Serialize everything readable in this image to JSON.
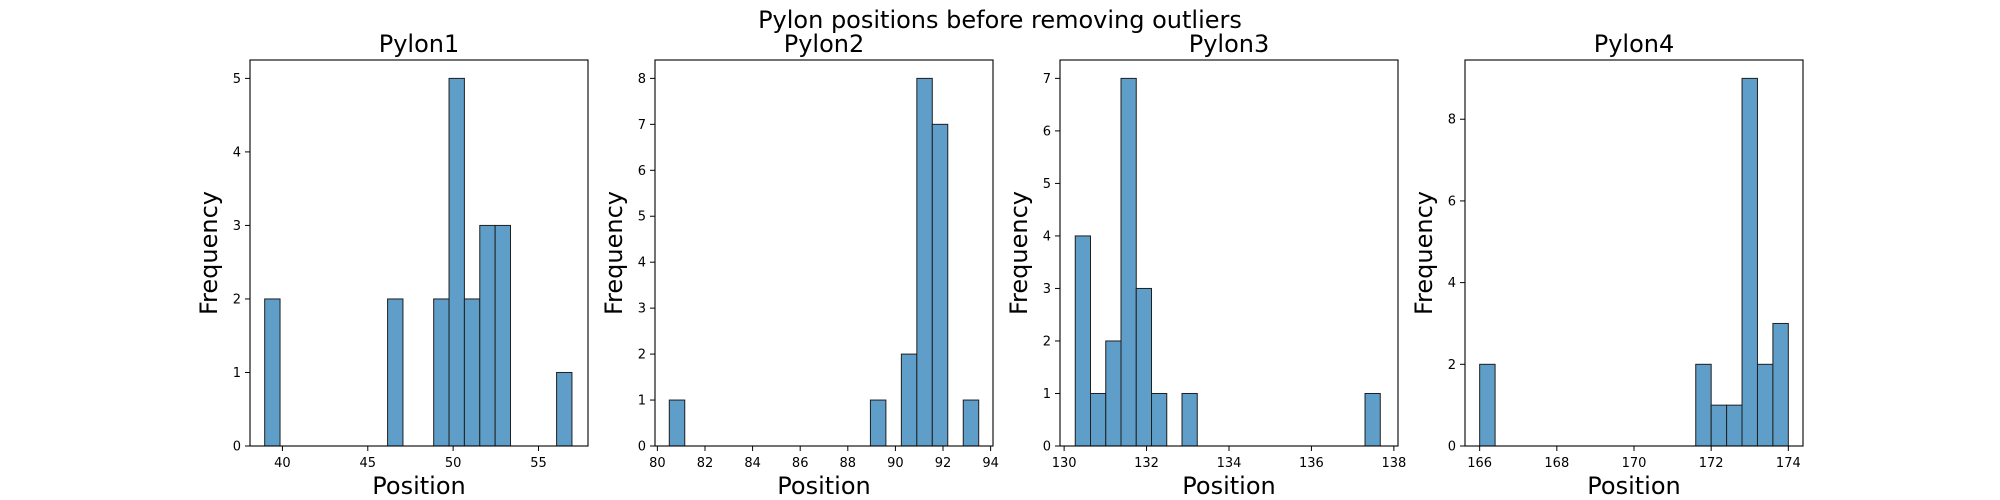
{
  "chart_data": {
    "type": "bar",
    "title": "Pylon positions before removing outliers",
    "bar_color": "#5f9ec9",
    "edge_color": "#1f1f1f",
    "panels": [
      {
        "title": "Pylon1",
        "xlabel": "Position",
        "ylabel": "Frequency",
        "xlim": [
          38.1,
          57.9
        ],
        "ylim": [
          0,
          5.25
        ],
        "xticks": [
          40,
          45,
          50,
          55
        ],
        "yticks": [
          0,
          1,
          2,
          3,
          4,
          5
        ],
        "bin_edges": [
          38.96,
          39.86,
          40.76,
          41.66,
          42.56,
          43.46,
          44.36,
          45.26,
          46.16,
          47.06,
          47.96,
          48.86,
          49.76,
          50.66,
          51.56,
          52.46,
          53.36,
          54.26,
          55.16,
          56.06,
          56.96
        ],
        "counts": [
          2,
          0,
          0,
          0,
          0,
          0,
          0,
          0,
          2,
          0,
          0,
          2,
          5,
          2,
          3,
          3,
          0,
          0,
          0,
          1
        ]
      },
      {
        "title": "Pylon2",
        "xlabel": "Position",
        "ylabel": "Frequency",
        "xlim": [
          79.9,
          94.1
        ],
        "ylim": [
          0,
          8.4
        ],
        "xticks": [
          80,
          82,
          84,
          86,
          88,
          90,
          92,
          94
        ],
        "yticks": [
          0,
          1,
          2,
          3,
          4,
          5,
          6,
          7,
          8
        ],
        "bin_edges": [
          80.5,
          81.15,
          81.8,
          82.45,
          83.1,
          83.75,
          84.4,
          85.05,
          85.7,
          86.35,
          87.0,
          87.65,
          88.3,
          88.95,
          89.6,
          90.25,
          90.9,
          91.55,
          92.2,
          92.85,
          93.5
        ],
        "counts": [
          1,
          0,
          0,
          0,
          0,
          0,
          0,
          0,
          0,
          0,
          0,
          0,
          0,
          1,
          0,
          2,
          8,
          7,
          0,
          1
        ]
      },
      {
        "title": "Pylon3",
        "xlabel": "Position",
        "ylabel": "Frequency",
        "xlim": [
          129.9,
          138.1
        ],
        "ylim": [
          0,
          7.35
        ],
        "xticks": [
          130,
          132,
          134,
          136,
          138
        ],
        "yticks": [
          0,
          1,
          2,
          3,
          4,
          5,
          6,
          7
        ],
        "bin_edges": [
          130.27,
          130.64,
          131.01,
          131.38,
          131.75,
          132.12,
          132.49,
          132.86,
          133.23,
          133.6,
          133.97,
          134.34,
          134.71,
          135.08,
          135.45,
          135.82,
          136.19,
          136.56,
          136.93,
          137.3,
          137.67
        ],
        "counts": [
          4,
          1,
          2,
          7,
          3,
          1,
          0,
          1,
          0,
          0,
          0,
          0,
          0,
          0,
          0,
          0,
          0,
          0,
          0,
          1
        ]
      },
      {
        "title": "Pylon4",
        "xlabel": "Position",
        "ylabel": "Frequency",
        "xlim": [
          165.62,
          174.38
        ],
        "ylim": [
          0,
          9.45
        ],
        "xticks": [
          166,
          168,
          170,
          172,
          174
        ],
        "yticks": [
          0,
          2,
          4,
          6,
          8
        ],
        "bin_edges": [
          166.0,
          166.4,
          166.8,
          167.2,
          167.6,
          168.0,
          168.4,
          168.8,
          169.2,
          169.6,
          170.0,
          170.4,
          170.8,
          171.2,
          171.6,
          172.0,
          172.4,
          172.8,
          173.2,
          173.6,
          174.0
        ],
        "counts": [
          2,
          0,
          0,
          0,
          0,
          0,
          0,
          0,
          0,
          0,
          0,
          0,
          0,
          0,
          2,
          1,
          1,
          9,
          2,
          3
        ]
      }
    ]
  }
}
